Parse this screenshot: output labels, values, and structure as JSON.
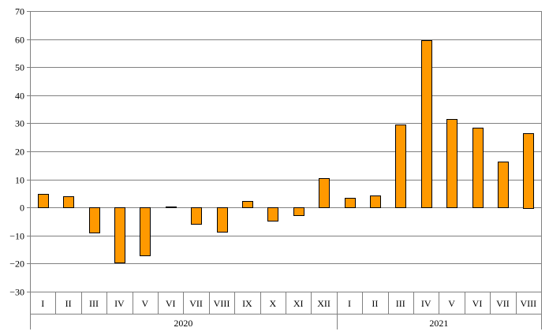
{
  "chart_data": {
    "type": "bar",
    "title": "",
    "xlabel": "",
    "ylabel": "",
    "ylim": [
      -30,
      70
    ],
    "yticks": [
      -30,
      -20,
      -10,
      0,
      10,
      20,
      30,
      40,
      50,
      60,
      70
    ],
    "grid": true,
    "legend": "none",
    "bar_color": "#ff9900",
    "groups": [
      {
        "label": "2020",
        "categories": [
          "I",
          "II",
          "III",
          "IV",
          "V",
          "VI",
          "VII",
          "VIII",
          "IX",
          "X",
          "XI",
          "XII"
        ]
      },
      {
        "label": "2021",
        "categories": [
          "I",
          "II",
          "III",
          "IV",
          "V",
          "VI",
          "VII",
          "VIII"
        ]
      }
    ],
    "categories": [
      "I",
      "II",
      "III",
      "IV",
      "V",
      "VI",
      "VII",
      "VIII",
      "IX",
      "X",
      "XI",
      "XII",
      "I",
      "II",
      "III",
      "IV",
      "V",
      "VI",
      "VII",
      "VIII"
    ],
    "values": [
      4.7,
      4.0,
      -8.9,
      -19.8,
      -17.1,
      0.3,
      -5.8,
      -8.8,
      2.2,
      -4.9,
      -2.8,
      10.5,
      3.3,
      4.3,
      29.6,
      59.5,
      31.5,
      28.3,
      16.3,
      26.6
    ]
  }
}
